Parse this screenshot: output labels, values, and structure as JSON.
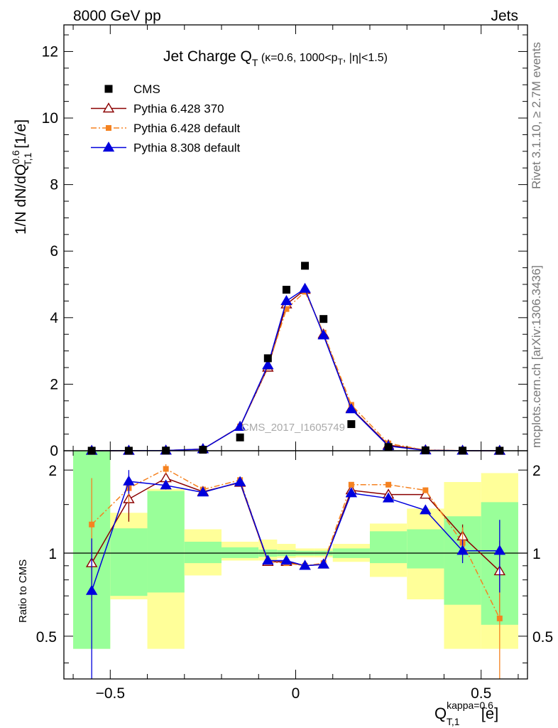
{
  "header": {
    "left": "8000 GeV pp",
    "right": "Jets"
  },
  "side": {
    "rivet": "Rivet 3.1.10, ≥ 2.7M events",
    "mcplots": "mcplots.cern.ch [arXiv:1306.3436]"
  },
  "watermark": "CMS_2017_I1605749",
  "title": {
    "main": "Jet Charge Q",
    "sub": "T",
    "rest_a": " (κ=0.6, 1000<p",
    "sub2": "T",
    "rest_b": ", |η|<1.5)"
  },
  "ylabel": {
    "a": "1/N dN/dQ",
    "sup": "0.6",
    "sub": "T,1",
    "b": " [1/e]"
  },
  "ratio_ylabel": "Ratio to CMS",
  "xlabel": {
    "a": "Q",
    "sup": "kappa=0.6",
    "sub": "T,1",
    "b": " [e]"
  },
  "chart_data": {
    "type": "line",
    "bins": [
      [
        -0.6,
        -0.5
      ],
      [
        -0.5,
        -0.4
      ],
      [
        -0.4,
        -0.3
      ],
      [
        -0.3,
        -0.2
      ],
      [
        -0.2,
        -0.1
      ],
      [
        -0.1,
        -0.05
      ],
      [
        -0.05,
        0.0
      ],
      [
        0.0,
        0.05
      ],
      [
        0.05,
        0.1
      ],
      [
        0.1,
        0.2
      ],
      [
        0.2,
        0.3
      ],
      [
        0.3,
        0.4
      ],
      [
        0.4,
        0.5
      ],
      [
        0.5,
        0.6
      ]
    ],
    "x": [
      -0.55,
      -0.45,
      -0.35,
      -0.25,
      -0.15,
      -0.075,
      -0.025,
      0.025,
      0.075,
      0.15,
      0.25,
      0.35,
      0.45,
      0.55
    ],
    "xlim": [
      -0.625,
      0.625
    ],
    "ylim": [
      0,
      12.8
    ],
    "yticks": [
      0,
      2,
      4,
      6,
      8,
      10,
      12
    ],
    "xticks": [
      -0.5,
      0,
      0.5
    ],
    "xtick_labels": [
      "−0.5",
      "0",
      "0.5"
    ],
    "ratio_ylim": [
      0.35,
      2.35
    ],
    "ratio_yticks": [
      0.5,
      1,
      2
    ],
    "ratio_ytick_labels": [
      "0.5",
      "1",
      "2"
    ],
    "data": {
      "name": "CMS",
      "values": [
        0.0005,
        0.001,
        0.004,
        0.03,
        0.4,
        2.78,
        4.84,
        5.56,
        3.96,
        0.8,
        0.11,
        0.012,
        0.003,
        0.001
      ]
    },
    "series": [
      {
        "name": "Pythia 6.428 370",
        "color": "#8b0000",
        "marker": "triangle-open",
        "dash": "",
        "values": [
          0.0005,
          0.0016,
          0.0075,
          0.05,
          0.72,
          2.5,
          4.4,
          4.84,
          3.5,
          1.27,
          0.17,
          0.019,
          0.0035,
          0.001
        ],
        "ratio": [
          0.92,
          1.57,
          1.87,
          1.67,
          1.8,
          0.93,
          0.93,
          0.9,
          0.91,
          1.69,
          1.63,
          1.63,
          1.15,
          0.86
        ],
        "ratio_err": [
          0.12,
          0.27,
          0.08,
          0.02,
          0.02,
          0.01,
          0.01,
          0.01,
          0.01,
          0.02,
          0.03,
          0.05,
          0.12,
          0.25
        ]
      },
      {
        "name": "Pythia 6.428 default",
        "color": "#f58220",
        "marker": "square",
        "dash": "8,3,2,3",
        "values": [
          0.0006,
          0.0017,
          0.008,
          0.05,
          0.73,
          2.52,
          4.26,
          4.78,
          3.55,
          1.38,
          0.22,
          0.02,
          0.0033,
          0.0006
        ],
        "ratio": [
          1.27,
          1.72,
          2.02,
          1.7,
          1.84,
          0.93,
          0.92,
          0.9,
          0.92,
          1.77,
          1.77,
          1.69,
          1.09,
          0.58
        ],
        "ratio_err": [
          0.6,
          0.2,
          0.08,
          0.02,
          0.02,
          0.01,
          0.01,
          0.01,
          0.01,
          0.02,
          0.03,
          0.04,
          0.15,
          0.25
        ]
      },
      {
        "name": "Pythia 8.308 default",
        "color": "#0000dd",
        "marker": "triangle",
        "dash": "",
        "values": [
          0.0004,
          0.0018,
          0.007,
          0.05,
          0.72,
          2.57,
          4.5,
          4.87,
          3.47,
          1.25,
          0.14,
          0.012,
          0.003,
          0.001
        ],
        "ratio": [
          0.73,
          1.82,
          1.76,
          1.66,
          1.81,
          0.94,
          0.94,
          0.9,
          0.91,
          1.65,
          1.58,
          1.43,
          1.02,
          1.02
        ],
        "ratio_err": [
          0.4,
          0.18,
          0.06,
          0.02,
          0.02,
          0.01,
          0.01,
          0.01,
          0.01,
          0.02,
          0.03,
          0.03,
          0.1,
          0.3
        ]
      }
    ],
    "uncertainty_bands": {
      "stat": [
        [
          0.45,
          2.35
        ],
        [
          0.7,
          1.23
        ],
        [
          0.72,
          1.68
        ],
        [
          0.92,
          1.1
        ],
        [
          0.96,
          1.05
        ],
        [
          0.97,
          1.03
        ],
        [
          0.975,
          1.025
        ],
        [
          0.98,
          1.02
        ],
        [
          0.98,
          1.02
        ],
        [
          0.96,
          1.04
        ],
        [
          0.92,
          1.2
        ],
        [
          0.88,
          1.22
        ],
        [
          0.65,
          1.36
        ],
        [
          0.55,
          1.53
        ]
      ],
      "total": [
        [
          0.45,
          2.35
        ],
        [
          0.68,
          1.4
        ],
        [
          0.45,
          1.71
        ],
        [
          0.83,
          1.22
        ],
        [
          0.94,
          1.1
        ],
        [
          0.94,
          1.12
        ],
        [
          0.96,
          1.08
        ],
        [
          0.965,
          1.04
        ],
        [
          0.965,
          1.04
        ],
        [
          0.93,
          1.08
        ],
        [
          0.82,
          1.28
        ],
        [
          0.68,
          1.45
        ],
        [
          0.45,
          1.81
        ],
        [
          0.45,
          1.95
        ]
      ]
    }
  }
}
